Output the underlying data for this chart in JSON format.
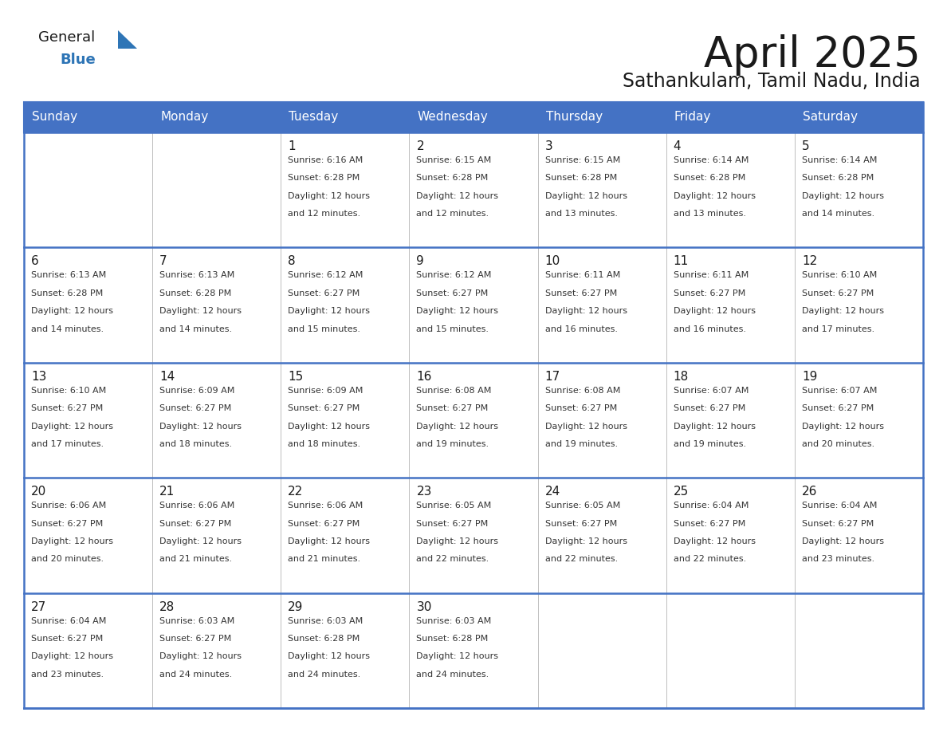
{
  "title": "April 2025",
  "subtitle": "Sathankulam, Tamil Nadu, India",
  "header_bg_color": "#4472C4",
  "header_text_color": "#FFFFFF",
  "cell_bg_even": "#FFFFFF",
  "cell_bg_odd": "#F0F0F0",
  "grid_color_outer": "#4472C4",
  "grid_color_inner": "#C0C0C0",
  "week_separator_color": "#4472C4",
  "day_headers": [
    "Sunday",
    "Monday",
    "Tuesday",
    "Wednesday",
    "Thursday",
    "Friday",
    "Saturday"
  ],
  "weeks": [
    [
      {
        "day": "",
        "sunrise": "",
        "sunset": "",
        "daylight_min": ""
      },
      {
        "day": "",
        "sunrise": "",
        "sunset": "",
        "daylight_min": ""
      },
      {
        "day": "1",
        "sunrise": "6:16 AM",
        "sunset": "6:28 PM",
        "daylight_min": "12 minutes."
      },
      {
        "day": "2",
        "sunrise": "6:15 AM",
        "sunset": "6:28 PM",
        "daylight_min": "12 minutes."
      },
      {
        "day": "3",
        "sunrise": "6:15 AM",
        "sunset": "6:28 PM",
        "daylight_min": "13 minutes."
      },
      {
        "day": "4",
        "sunrise": "6:14 AM",
        "sunset": "6:28 PM",
        "daylight_min": "13 minutes."
      },
      {
        "day": "5",
        "sunrise": "6:14 AM",
        "sunset": "6:28 PM",
        "daylight_min": "14 minutes."
      }
    ],
    [
      {
        "day": "6",
        "sunrise": "6:13 AM",
        "sunset": "6:28 PM",
        "daylight_min": "14 minutes."
      },
      {
        "day": "7",
        "sunrise": "6:13 AM",
        "sunset": "6:28 PM",
        "daylight_min": "14 minutes."
      },
      {
        "day": "8",
        "sunrise": "6:12 AM",
        "sunset": "6:27 PM",
        "daylight_min": "15 minutes."
      },
      {
        "day": "9",
        "sunrise": "6:12 AM",
        "sunset": "6:27 PM",
        "daylight_min": "15 minutes."
      },
      {
        "day": "10",
        "sunrise": "6:11 AM",
        "sunset": "6:27 PM",
        "daylight_min": "16 minutes."
      },
      {
        "day": "11",
        "sunrise": "6:11 AM",
        "sunset": "6:27 PM",
        "daylight_min": "16 minutes."
      },
      {
        "day": "12",
        "sunrise": "6:10 AM",
        "sunset": "6:27 PM",
        "daylight_min": "17 minutes."
      }
    ],
    [
      {
        "day": "13",
        "sunrise": "6:10 AM",
        "sunset": "6:27 PM",
        "daylight_min": "17 minutes."
      },
      {
        "day": "14",
        "sunrise": "6:09 AM",
        "sunset": "6:27 PM",
        "daylight_min": "18 minutes."
      },
      {
        "day": "15",
        "sunrise": "6:09 AM",
        "sunset": "6:27 PM",
        "daylight_min": "18 minutes."
      },
      {
        "day": "16",
        "sunrise": "6:08 AM",
        "sunset": "6:27 PM",
        "daylight_min": "19 minutes."
      },
      {
        "day": "17",
        "sunrise": "6:08 AM",
        "sunset": "6:27 PM",
        "daylight_min": "19 minutes."
      },
      {
        "day": "18",
        "sunrise": "6:07 AM",
        "sunset": "6:27 PM",
        "daylight_min": "19 minutes."
      },
      {
        "day": "19",
        "sunrise": "6:07 AM",
        "sunset": "6:27 PM",
        "daylight_min": "20 minutes."
      }
    ],
    [
      {
        "day": "20",
        "sunrise": "6:06 AM",
        "sunset": "6:27 PM",
        "daylight_min": "20 minutes."
      },
      {
        "day": "21",
        "sunrise": "6:06 AM",
        "sunset": "6:27 PM",
        "daylight_min": "21 minutes."
      },
      {
        "day": "22",
        "sunrise": "6:06 AM",
        "sunset": "6:27 PM",
        "daylight_min": "21 minutes."
      },
      {
        "day": "23",
        "sunrise": "6:05 AM",
        "sunset": "6:27 PM",
        "daylight_min": "22 minutes."
      },
      {
        "day": "24",
        "sunrise": "6:05 AM",
        "sunset": "6:27 PM",
        "daylight_min": "22 minutes."
      },
      {
        "day": "25",
        "sunrise": "6:04 AM",
        "sunset": "6:27 PM",
        "daylight_min": "22 minutes."
      },
      {
        "day": "26",
        "sunrise": "6:04 AM",
        "sunset": "6:27 PM",
        "daylight_min": "23 minutes."
      }
    ],
    [
      {
        "day": "27",
        "sunrise": "6:04 AM",
        "sunset": "6:27 PM",
        "daylight_min": "23 minutes."
      },
      {
        "day": "28",
        "sunrise": "6:03 AM",
        "sunset": "6:27 PM",
        "daylight_min": "24 minutes."
      },
      {
        "day": "29",
        "sunrise": "6:03 AM",
        "sunset": "6:28 PM",
        "daylight_min": "24 minutes."
      },
      {
        "day": "30",
        "sunrise": "6:03 AM",
        "sunset": "6:28 PM",
        "daylight_min": "24 minutes."
      },
      {
        "day": "",
        "sunrise": "",
        "sunset": "",
        "daylight_min": ""
      },
      {
        "day": "",
        "sunrise": "",
        "sunset": "",
        "daylight_min": ""
      },
      {
        "day": "",
        "sunrise": "",
        "sunset": "",
        "daylight_min": ""
      }
    ]
  ],
  "logo_triangle_color": "#2E75B6",
  "title_color": "#1A1A1A",
  "subtitle_color": "#1A1A1A",
  "title_fontsize": 38,
  "subtitle_fontsize": 17,
  "day_number_fontsize": 11,
  "cell_text_fontsize": 8.0,
  "header_fontsize": 11
}
